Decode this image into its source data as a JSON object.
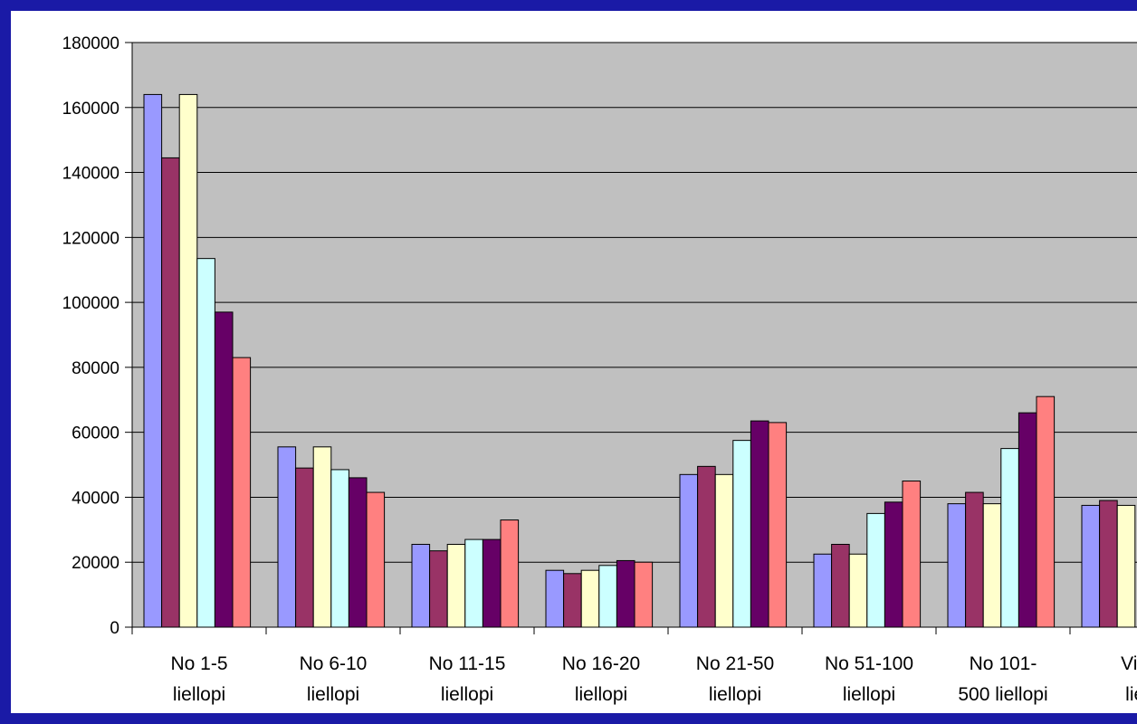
{
  "chart_data": {
    "type": "bar",
    "title": "",
    "xlabel": "",
    "ylabel": "",
    "ylim": [
      0,
      180000
    ],
    "yticks": [
      0,
      20000,
      40000,
      60000,
      80000,
      100000,
      120000,
      140000,
      160000,
      180000
    ],
    "grid": true,
    "legend": "none",
    "categories": [
      [
        "No 1-5",
        "liellopi"
      ],
      [
        "No 6-10",
        "liellopi"
      ],
      [
        "No 11-15",
        "liellopi"
      ],
      [
        "No 16-20",
        "liellopi"
      ],
      [
        "No 21-50",
        "liellopi"
      ],
      [
        "No 51-100",
        "liellopi"
      ],
      [
        "No 101-",
        "500 liellopi"
      ],
      [
        "Virs",
        "liel"
      ]
    ],
    "series": [
      {
        "color": "#9999ff",
        "values": [
          164000,
          55500,
          25500,
          17500,
          47000,
          22500,
          38000,
          37500
        ]
      },
      {
        "color": "#993366",
        "values": [
          144500,
          49000,
          23500,
          16500,
          49500,
          25500,
          41500,
          39000
        ]
      },
      {
        "color": "#ffffcc",
        "values": [
          164000,
          55500,
          25500,
          17500,
          47000,
          22500,
          38000,
          37500
        ]
      },
      {
        "color": "#ccffff",
        "values": [
          113500,
          48500,
          27000,
          19000,
          57500,
          35000,
          55000,
          null
        ]
      },
      {
        "color": "#660066",
        "values": [
          97000,
          46000,
          27000,
          20500,
          63500,
          38500,
          66000,
          null
        ]
      },
      {
        "color": "#ff8080",
        "values": [
          83000,
          41500,
          33000,
          20000,
          63000,
          45000,
          71000,
          null
        ]
      }
    ],
    "plot_background": "#c0c0c0",
    "page_background": "#1a1aa6"
  }
}
